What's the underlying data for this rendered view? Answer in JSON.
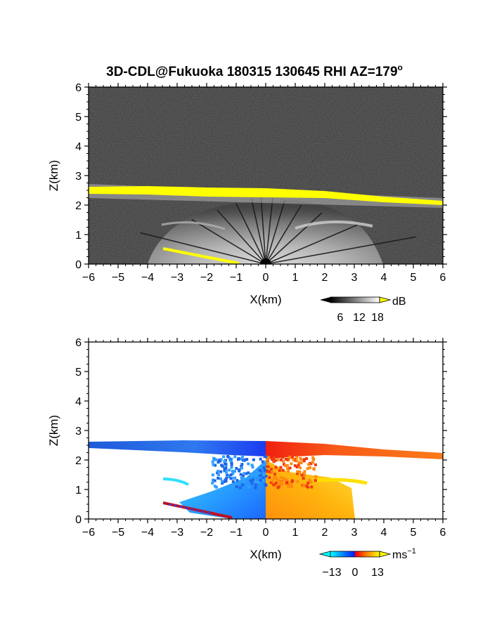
{
  "title": "3D-CDL@Fukuoka 180315 130645 RHI AZ=179",
  "title_superscript": "o",
  "chart_data": [
    {
      "type": "heatmap",
      "name": "reflectivity",
      "xlabel": "X(km)",
      "ylabel": "Z(km)",
      "xlim": [
        -6,
        6
      ],
      "ylim": [
        0,
        6
      ],
      "xticks": [
        "-6",
        "-5",
        "-4",
        "-3",
        "-2",
        "-1",
        "0",
        "1",
        "2",
        "3",
        "4",
        "5",
        "6"
      ],
      "yticks": [
        "0",
        "1",
        "2",
        "3",
        "4",
        "5",
        "6"
      ],
      "colorbar": {
        "unit": "dB",
        "tick_labels": [
          "6",
          "12",
          "18"
        ],
        "palette": "gray-to-white, yellow above max"
      },
      "layers": [
        {
          "kind": "elevated-echo-band",
          "x": [
            -6,
            -4,
            -2,
            0,
            2,
            4,
            6
          ],
          "z_bottom": [
            2.4,
            2.38,
            2.33,
            2.27,
            2.2,
            2.12,
            2.03
          ],
          "z_top": [
            2.6,
            2.6,
            2.56,
            2.52,
            2.45,
            2.37,
            2.28
          ],
          "level": "saturated"
        },
        {
          "kind": "near-ground-fan",
          "x_range": [
            -4.2,
            3.8
          ],
          "z_top": 2.2,
          "level": "medium-to-bright"
        },
        {
          "kind": "ground-clutter-line",
          "x": [
            -3.5,
            -0.5
          ],
          "z": [
            0.55,
            0.0
          ],
          "level": "saturated"
        }
      ]
    },
    {
      "type": "heatmap",
      "name": "doppler-velocity",
      "xlabel": "X(km)",
      "ylabel": "Z(km)",
      "xlim": [
        -6,
        6
      ],
      "ylim": [
        0,
        6
      ],
      "xticks": [
        "-6",
        "-5",
        "-4",
        "-3",
        "-2",
        "-1",
        "0",
        "1",
        "2",
        "3",
        "4",
        "5",
        "6"
      ],
      "yticks": [
        "0",
        "1",
        "2",
        "3",
        "4",
        "5",
        "6"
      ],
      "colorbar": {
        "unit": "ms",
        "unit_superscript": "−1",
        "tick_labels": [
          "−13",
          "0",
          "13"
        ],
        "palette": "cyan-blue-red-orange-yellow"
      },
      "layers": [
        {
          "kind": "elevated-echo-band",
          "x_range": [
            -6,
            0
          ],
          "z_bottom": [
            2.38,
            2.3
          ],
          "z_top": [
            2.6,
            2.55
          ],
          "velocity": -6
        },
        {
          "kind": "elevated-echo-band",
          "x_range": [
            0,
            6
          ],
          "z_bottom": [
            2.3,
            2.05
          ],
          "z_top": [
            2.6,
            2.25
          ],
          "velocity": 6
        },
        {
          "kind": "cone-approaching",
          "x_range": [
            -3.5,
            0
          ],
          "z_range": [
            0,
            1.3
          ],
          "velocity": -10
        },
        {
          "kind": "cone-receding",
          "x_range": [
            0,
            3.5
          ],
          "z_range": [
            0,
            1.4
          ],
          "velocity": 10
        }
      ]
    }
  ]
}
